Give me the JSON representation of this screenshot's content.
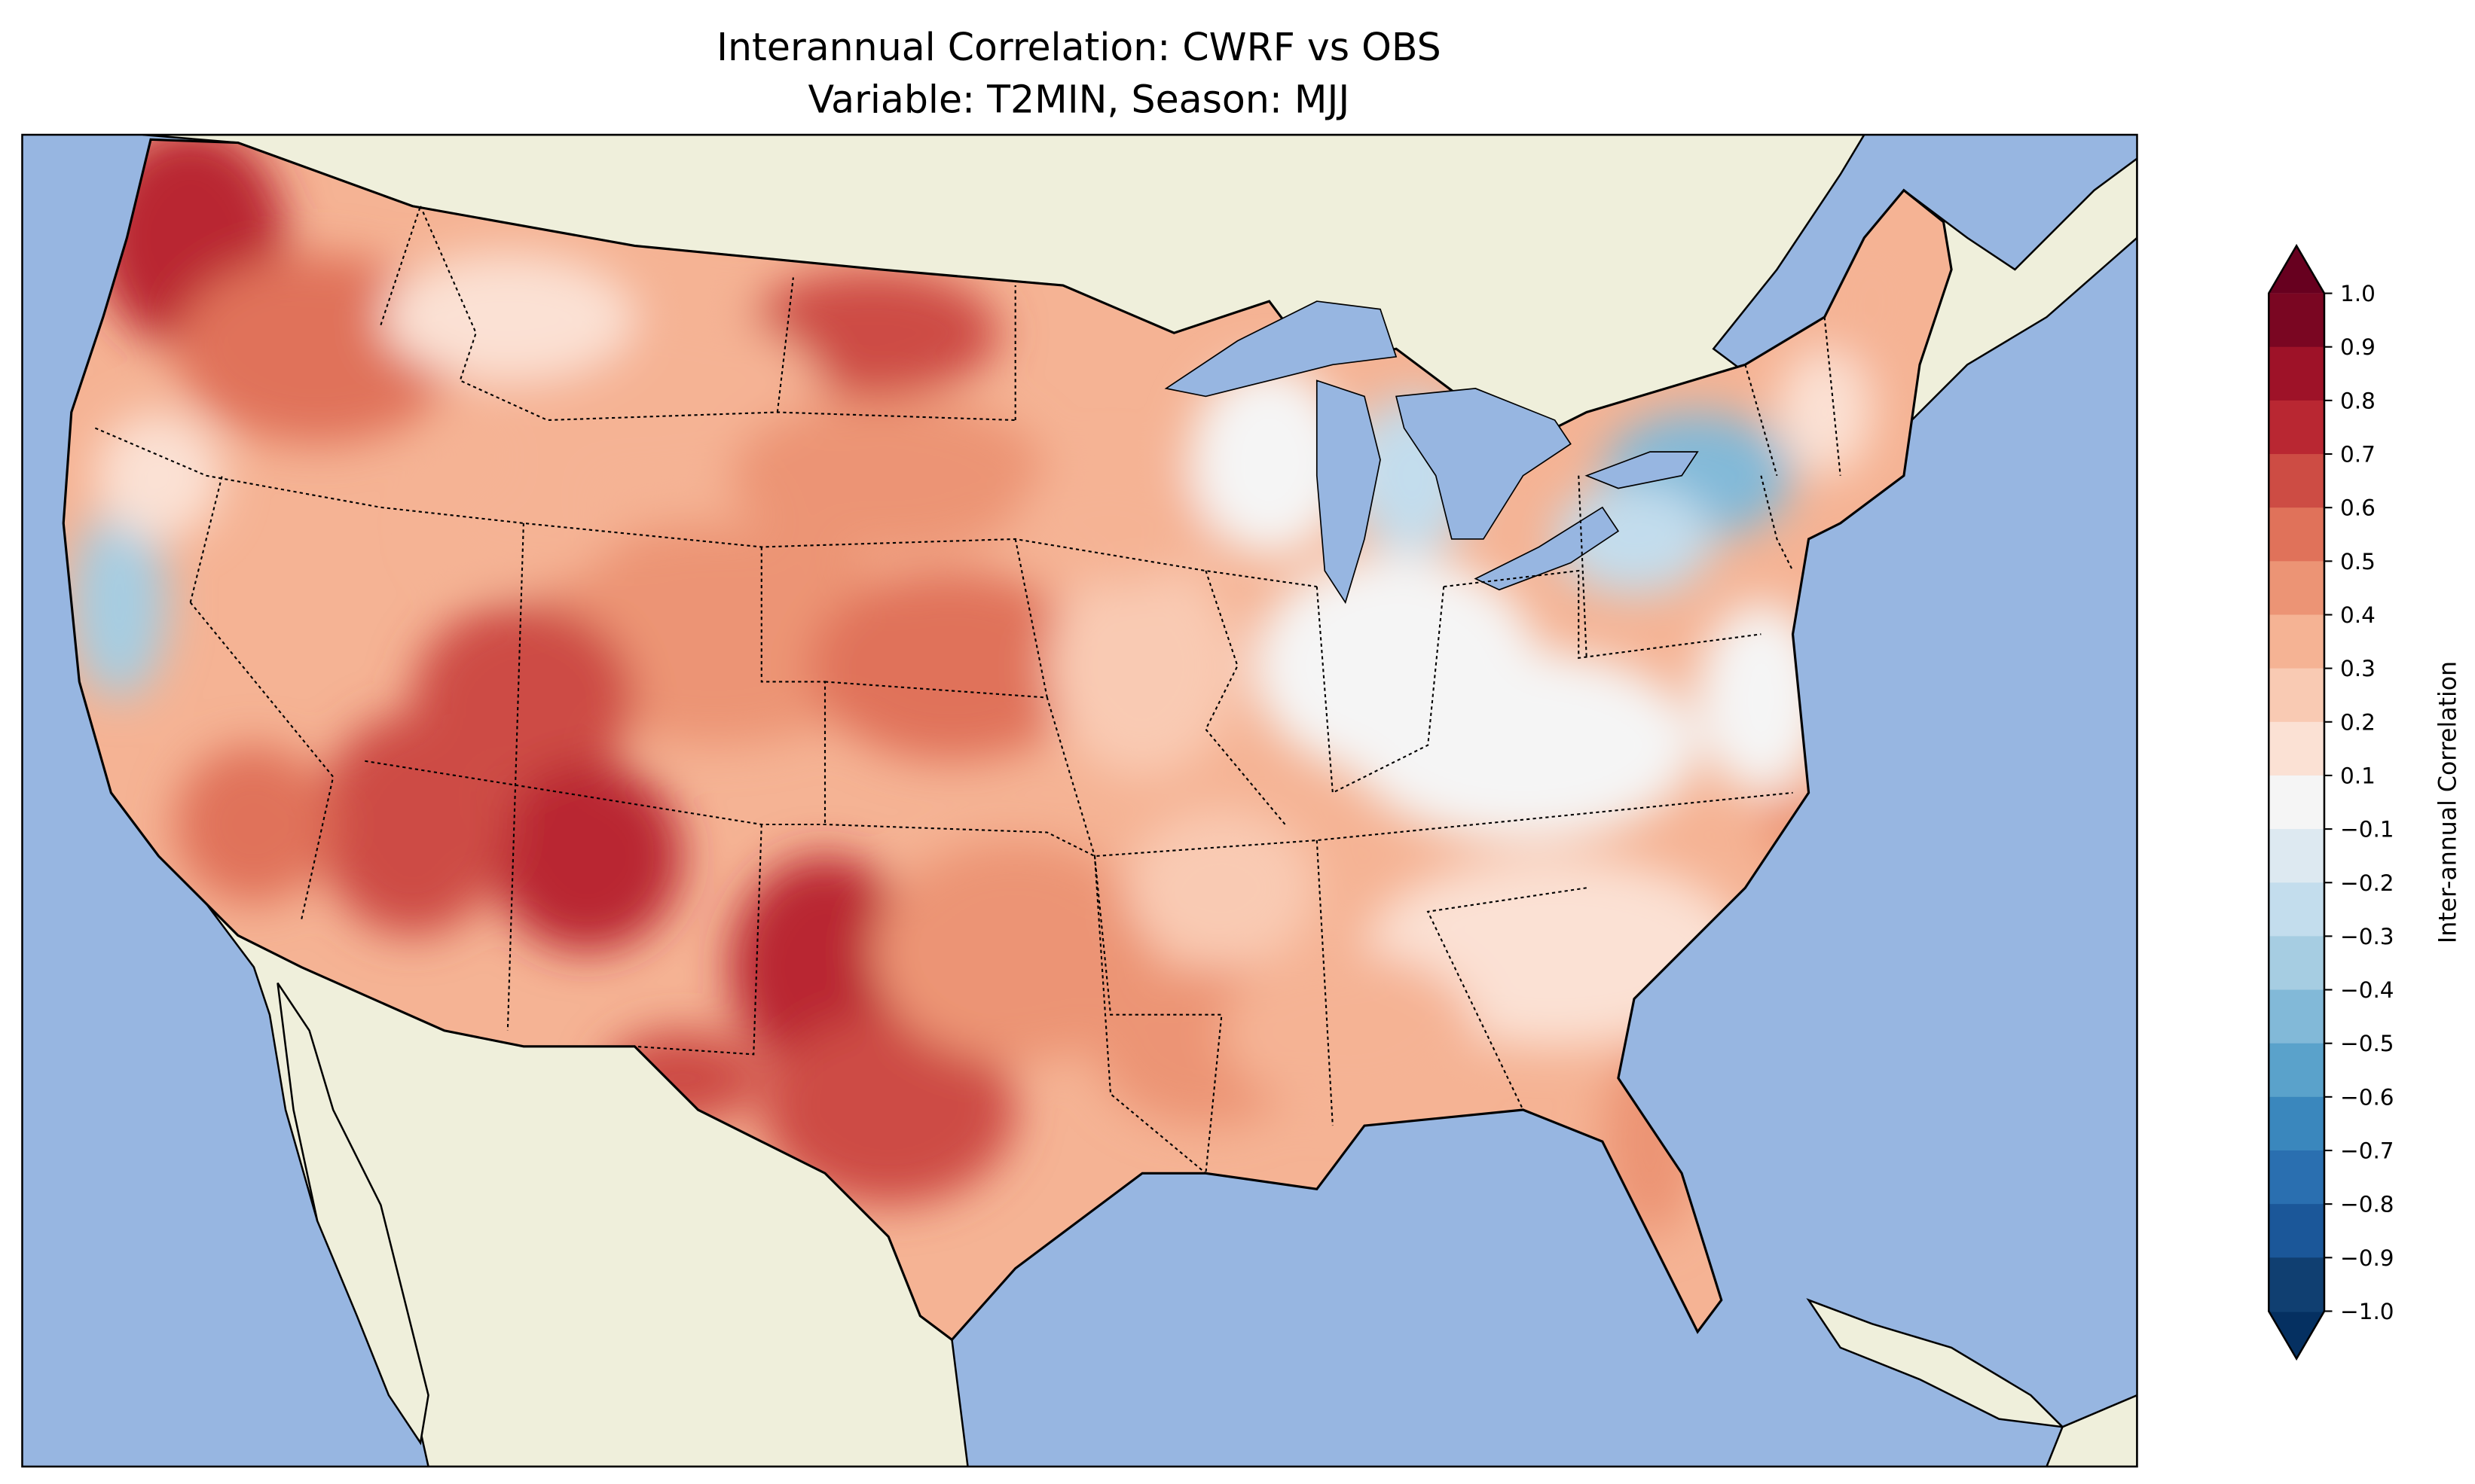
{
  "title": {
    "line1": "Interannual Correlation: CWRF vs OBS",
    "line2": "Variable: T2MIN, Season: MJJ"
  },
  "map": {
    "ocean_color": "#97b6e1",
    "land_color": "#efefdb",
    "lake_color": "#97b6e1"
  },
  "colorbar": {
    "label": "Inter-annual Correlation",
    "ticks": [
      "1.0",
      "0.9",
      "0.8",
      "0.7",
      "0.6",
      "0.5",
      "0.4",
      "0.3",
      "0.2",
      "0.1",
      "−0.1",
      "−0.2",
      "−0.3",
      "−0.4",
      "−0.5",
      "−0.6",
      "−0.7",
      "−0.8",
      "−0.9",
      "−1.0"
    ],
    "levels": [
      1.0,
      0.9,
      0.8,
      0.7,
      0.6,
      0.5,
      0.4,
      0.3,
      0.2,
      0.1,
      -0.1,
      -0.2,
      -0.3,
      -0.4,
      -0.5,
      -0.6,
      -0.7,
      -0.8,
      -0.9,
      -1.0
    ],
    "colors": [
      "#7a0622",
      "#9e1228",
      "#b92732",
      "#cd4c44",
      "#e0725a",
      "#ec9475",
      "#f5b394",
      "#f9cab3",
      "#fbe1d4",
      "#f5f5f5",
      "#dde9f1",
      "#c3dded",
      "#a6cde2",
      "#82b9d8",
      "#5aa2cb",
      "#3a87bd",
      "#2a6fb0",
      "#1b5799",
      "#103f71"
    ],
    "extend_max_color": "#67001f",
    "extend_min_color": "#053061"
  }
}
